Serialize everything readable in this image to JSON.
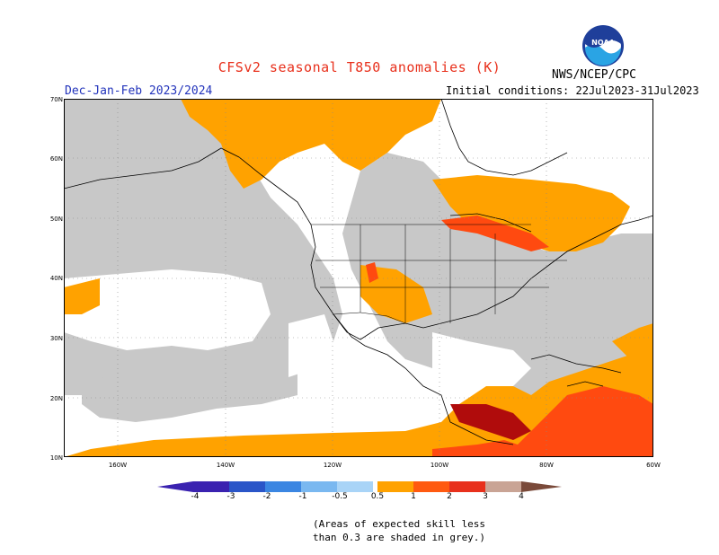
{
  "header": {
    "title": "CFSv2 seasonal T850 anomalies (K)",
    "agency": "NWS/NCEP/CPC",
    "season": "Dec-Jan-Feb 2023/2024",
    "initial_conditions": "Initial conditions: 22Jul2023-31Jul2023",
    "logo_text": "NOAA"
  },
  "axes": {
    "lat_labels": [
      "70N",
      "60N",
      "50N",
      "40N",
      "30N",
      "20N",
      "10N"
    ],
    "lon_labels": [
      "160W",
      "140W",
      "120W",
      "100W",
      "80W",
      "60W"
    ]
  },
  "colorbar": {
    "labels": [
      "-4",
      "-3",
      "-2",
      "-1",
      "-0.5",
      "0.5",
      "1",
      "2",
      "3",
      "4"
    ],
    "colors": {
      "minus4": "#3a22b0",
      "minus3": "#2a55c8",
      "minus2": "#3b86e2",
      "minus1": "#7ab8f0",
      "minus05": "#a9d4f7",
      "neutral": "#ffffff",
      "plus05": "#ffa200",
      "plus1": "#ff5a10",
      "plus2": "#e8301c",
      "plus3": "#b00c0c",
      "plus4": "#c9a495",
      "plus5": "#7a4a3a"
    }
  },
  "map_colors": {
    "grey": "#c8c8c8",
    "orange": "#ffa200",
    "red": "#ff4a10",
    "darkred": "#b00c0c"
  },
  "note": {
    "line1": "(Areas of expected skill less",
    "line2": "than 0.3 are shaded in grey.)"
  }
}
